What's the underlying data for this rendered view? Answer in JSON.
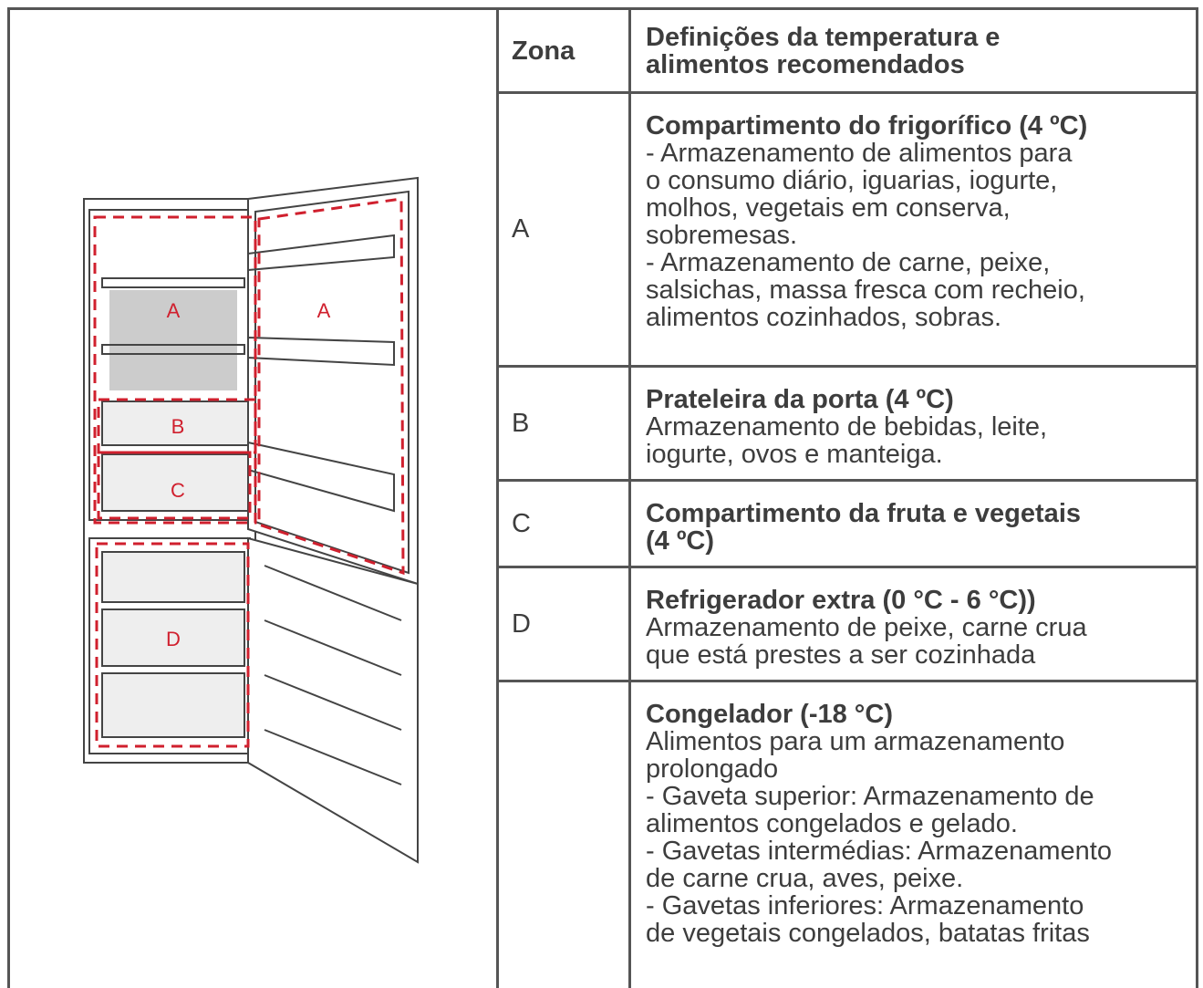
{
  "header": {
    "zone": "Zona",
    "title": [
      "Definições da temperatura e",
      "alimentos recomendados"
    ]
  },
  "figure": {
    "labels": [
      "A",
      "A",
      "B",
      "C",
      "D"
    ]
  },
  "rows": [
    {
      "zone": "A",
      "title": [
        "Compartimento do frigorífico (4 ºC)"
      ],
      "lines": [
        "- Armazenamento de alimentos para",
        "o consumo diário, iguarias, iogurte,",
        "molhos, vegetais em conserva,",
        "sobremesas.",
        "- Armazenamento de carne, peixe,",
        "salsichas, massa fresca com recheio,",
        "alimentos cozinhados, sobras."
      ]
    },
    {
      "zone": "B",
      "title": [
        "Prateleira da porta (4 ºC)"
      ],
      "lines": [
        "Armazenamento de bebidas, leite,",
        "iogurte, ovos e manteiga."
      ]
    },
    {
      "zone": "C",
      "title": [
        "Compartimento da fruta e vegetais",
        "(4 ºC)"
      ],
      "lines": []
    },
    {
      "zone": "D",
      "title": [
        "Refrigerador extra (0 °C - 6 °C))"
      ],
      "lines": [
        "Armazenamento de peixe, carne crua",
        "que está prestes a ser cozinhada"
      ]
    },
    {
      "title": [
        "Congelador (-18 °C)"
      ],
      "lines": [
        "Alimentos para um armazenamento",
        "prolongado",
        "- Gaveta superior: Armazenamento de",
        "alimentos congelados e gelado.",
        "- Gavetas intermédias: Armazenamento",
        "de carne crua, aves, peixe.",
        "- Gavetas inferiores: Armazenamento",
        "de vegetais congelados, batatas fritas"
      ]
    }
  ]
}
